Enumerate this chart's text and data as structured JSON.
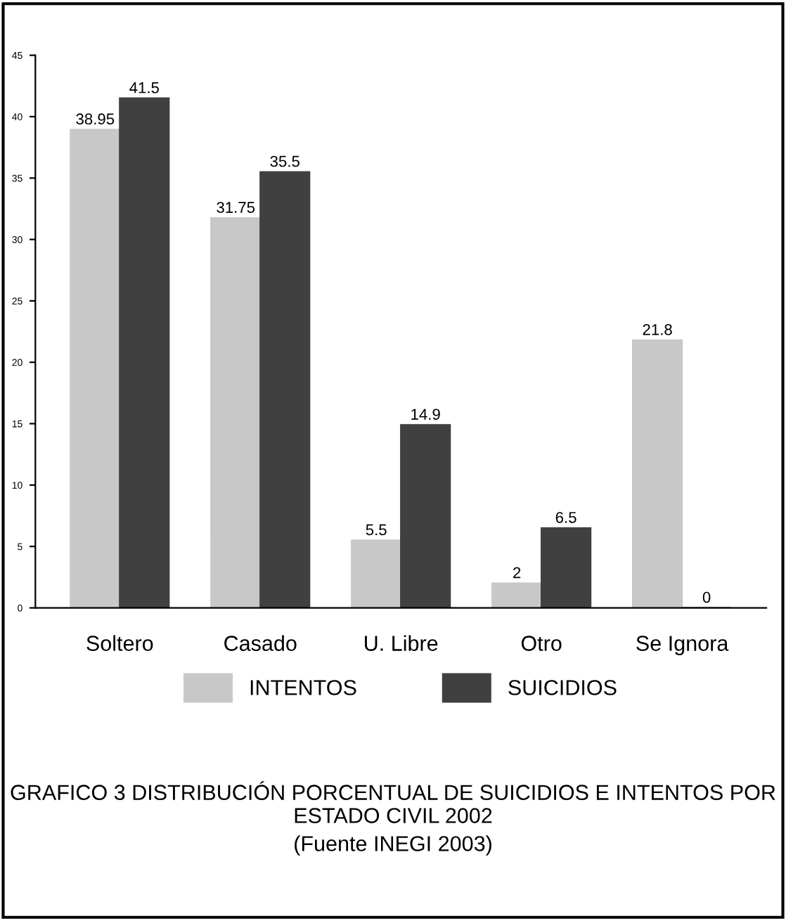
{
  "chart_data": {
    "type": "bar",
    "title": "GRAFICO 3 DISTRIBUCIÓN PORCENTUAL DE SUICIDIOS E INTENTOS POR ESTADO CIVIL 2002",
    "annotations": [
      "(Fuente INEGI 2003)"
    ],
    "categories": [
      "Soltero",
      "Casado",
      "U. Libre",
      "Otro",
      "Se Ignora"
    ],
    "series": [
      {
        "name": "INTENTOS",
        "color": "#c8c8c8",
        "values": [
          38.95,
          31.75,
          5.5,
          2,
          21.8
        ]
      },
      {
        "name": "SUICIDIOS",
        "color": "#404040",
        "values": [
          41.5,
          35.5,
          14.9,
          6.5,
          0
        ]
      }
    ],
    "ylim": [
      0,
      45
    ],
    "yticks": [
      0,
      5,
      10,
      15,
      20,
      25,
      30,
      35,
      40,
      45
    ],
    "data_labels": true,
    "grid": false,
    "legend": "bottom"
  }
}
